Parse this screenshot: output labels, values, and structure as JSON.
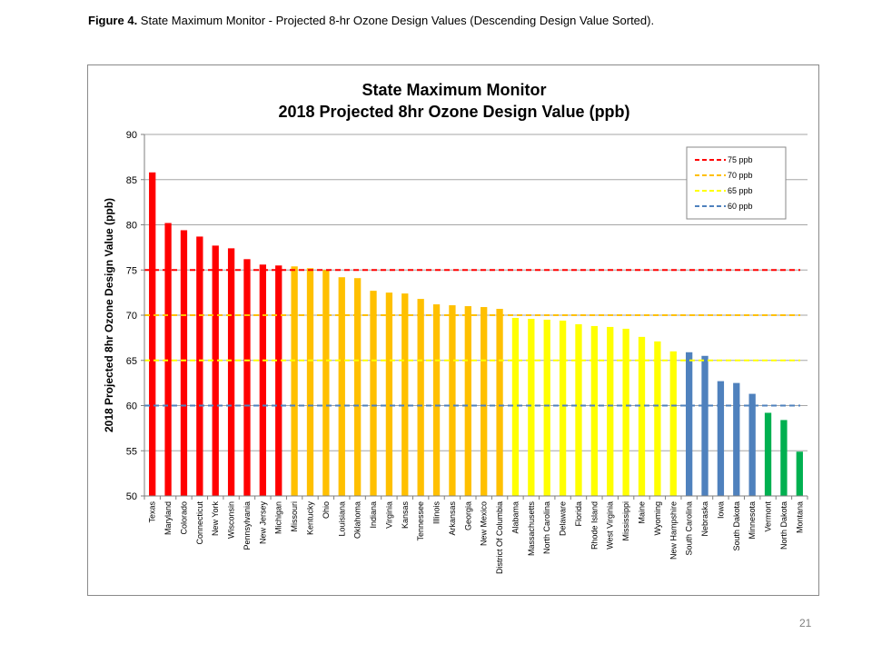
{
  "caption": {
    "label": "Figure 4.",
    "text": " State Maximum Monitor - Projected 8-hr Ozone Design Values (Descending Design Value Sorted)."
  },
  "page_number": "21",
  "chart_data": {
    "type": "bar",
    "title": "State Maximum Monitor",
    "subtitle": "2018 Projected 8hr Ozone Design Value (ppb)",
    "xlabel": "",
    "ylabel": "2018 Projected 8hr Ozone Design Value (ppb)",
    "ylim": [
      50,
      90
    ],
    "yticks": [
      50,
      55,
      60,
      65,
      70,
      75,
      80,
      85,
      90
    ],
    "grid": true,
    "categories": [
      "Texas",
      "Maryland",
      "Colorado",
      "Connecticut",
      "New York",
      "Wisconsin",
      "Pennsylvania",
      "New Jersey",
      "Michigan",
      "Missouri",
      "Kentucky",
      "Ohio",
      "Louisiana",
      "Oklahoma",
      "Indiana",
      "Virginia",
      "Kansas",
      "Tennessee",
      "Illinois",
      "Arkansas",
      "Georgia",
      "New Mexico",
      "District Of Columbia",
      "Alabama",
      "Massachusetts",
      "North Carolina",
      "Delaware",
      "Florida",
      "Rhode Island",
      "West Virginia",
      "Mississippi",
      "Maine",
      "Wyoming",
      "New Hampshire",
      "South Carolina",
      "Nebraska",
      "Iowa",
      "South Dakota",
      "Minnesota",
      "Vermont",
      "North Dakota",
      "Montana"
    ],
    "values": [
      85.8,
      80.2,
      79.4,
      78.7,
      77.7,
      77.4,
      76.2,
      75.6,
      75.5,
      75.4,
      75.2,
      75.0,
      74.2,
      74.1,
      72.7,
      72.5,
      72.4,
      71.8,
      71.2,
      71.1,
      71.0,
      70.9,
      70.7,
      69.7,
      69.6,
      69.5,
      69.4,
      69.0,
      68.8,
      68.7,
      68.5,
      67.6,
      67.1,
      66.0,
      65.9,
      65.5,
      62.7,
      62.5,
      61.3,
      59.2,
      58.4,
      54.9
    ],
    "bar_colors": {
      "above_75": "#ff0000",
      "70_to_75": "#ffc000",
      "65_to_70": "#ffff00",
      "60_to_65": "#4f81bd",
      "below_60": "#00b050"
    },
    "reference_lines": [
      {
        "name": "75 ppb",
        "value": 75,
        "color": "#ff0000"
      },
      {
        "name": "70 ppb",
        "value": 70,
        "color": "#ffc000"
      },
      {
        "name": "65 ppb",
        "value": 65,
        "color": "#ffff00"
      },
      {
        "name": "60 ppb",
        "value": 60,
        "color": "#4f81bd"
      }
    ],
    "legend_position": "top-right"
  }
}
